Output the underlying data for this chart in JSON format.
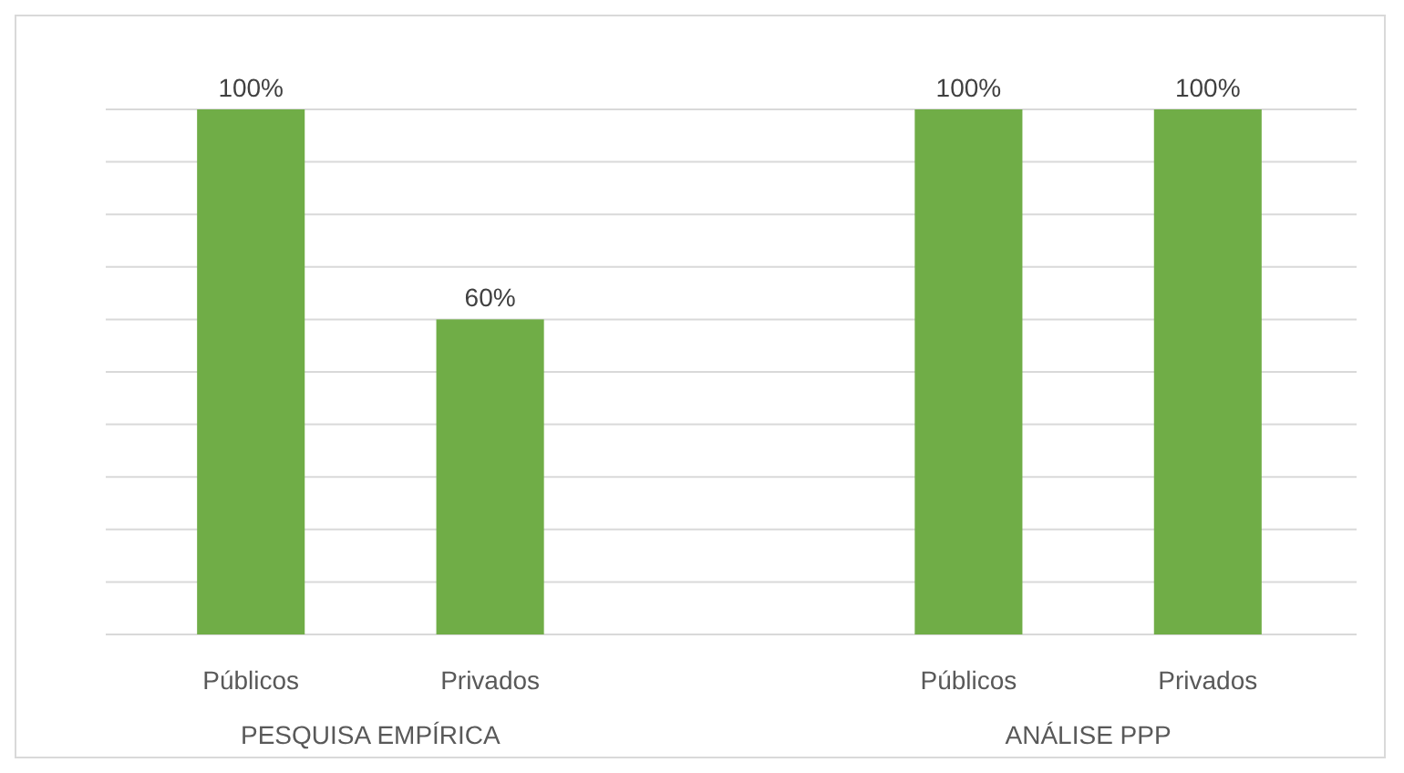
{
  "chart_data": {
    "type": "bar",
    "categories": [
      "Públicos",
      "Privados",
      null,
      "Públicos",
      "Privados"
    ],
    "values": [
      100,
      60,
      null,
      100,
      100
    ],
    "value_labels": [
      "100%",
      "60%",
      null,
      "100%",
      "100%"
    ],
    "color": "#70ad47",
    "ylim": [
      0,
      100
    ],
    "grid": true,
    "annotations": [
      "PESQUISA EMPÍRICA",
      "ANÁLISE PPP"
    ]
  }
}
